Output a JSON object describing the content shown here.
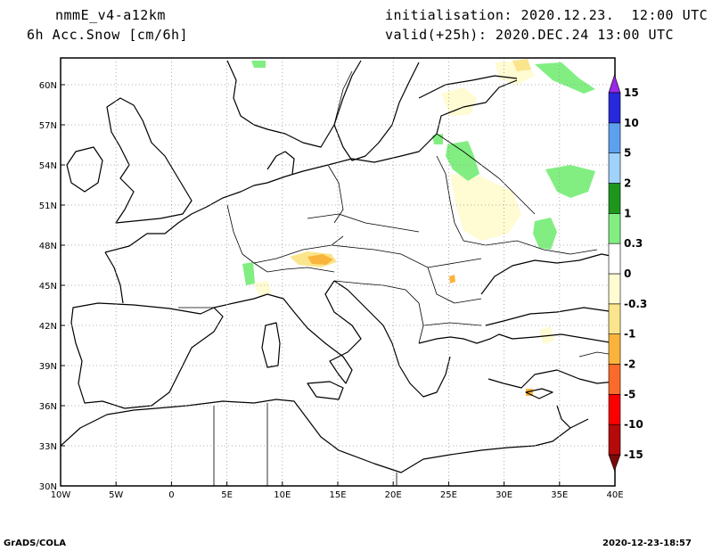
{
  "header": {
    "model": "nmmE_v4-a12km",
    "field": "6h Acc.Snow [cm/6h]",
    "init": "initialisation: 2020.12.23.  12:00 UTC",
    "valid": "valid(+25h): 2020.DEC.24 13:00 UTC"
  },
  "map": {
    "lon_range": [
      -10,
      40
    ],
    "lat_range": [
      30,
      62
    ],
    "lon_ticks": [
      {
        "value": -10,
        "label": "10W"
      },
      {
        "value": -5,
        "label": "5W"
      },
      {
        "value": 0,
        "label": "0"
      },
      {
        "value": 5,
        "label": "5E"
      },
      {
        "value": 10,
        "label": "10E"
      },
      {
        "value": 15,
        "label": "15E"
      },
      {
        "value": 20,
        "label": "20E"
      },
      {
        "value": 25,
        "label": "25E"
      },
      {
        "value": 30,
        "label": "30E"
      },
      {
        "value": 35,
        "label": "35E"
      },
      {
        "value": 40,
        "label": "40E"
      }
    ],
    "lat_ticks": [
      {
        "value": 30,
        "label": "30N"
      },
      {
        "value": 33,
        "label": "33N"
      },
      {
        "value": 36,
        "label": "36N"
      },
      {
        "value": 39,
        "label": "39N"
      },
      {
        "value": 42,
        "label": "42N"
      },
      {
        "value": 45,
        "label": "45N"
      },
      {
        "value": 48,
        "label": "48N"
      },
      {
        "value": 51,
        "label": "51N"
      },
      {
        "value": 54,
        "label": "54N"
      },
      {
        "value": 57,
        "label": "57N"
      },
      {
        "value": 60,
        "label": "60N"
      }
    ],
    "grid": "dotted"
  },
  "colorbar": {
    "colors": [
      "#7b0a0a",
      "#b40a0a",
      "#fa0000",
      "#fa6a2a",
      "#fab43c",
      "#fae58c",
      "#fffbd2",
      "#ffffff",
      "#82ee82",
      "#1e961e",
      "#a0d2fa",
      "#5ea0f0",
      "#2828dc",
      "#9a28e6"
    ],
    "labels": [
      "-15",
      "-10",
      "-5",
      "-2",
      "-1",
      "-0.3",
      "0",
      "0.3",
      "1",
      "2",
      "5",
      "10",
      "15"
    ]
  },
  "footer": {
    "left": "GrADS/COLA",
    "right": "2020-12-23-18:57"
  }
}
